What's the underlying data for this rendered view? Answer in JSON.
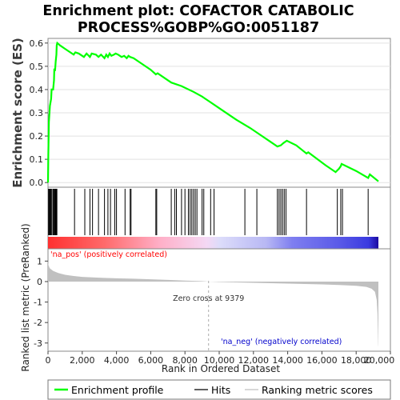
{
  "title_line1": "Enrichment plot: COFACTOR CATABOLIC",
  "title_line2": "PROCESS%GOBP%GO:0051187",
  "colors": {
    "es_line": "#00ff00",
    "hits": "#000000",
    "metric": "#c0c0c0",
    "pos_label": "#ff0000",
    "neg_label": "#0000cc",
    "zero_cross_line": "#aaaaaa"
  },
  "chart_data": [
    {
      "type": "line",
      "panel": "enrichment-profile",
      "ylabel": "Enrichment score (ES)",
      "xlim": [
        0,
        20000
      ],
      "ylim": [
        -0.02,
        0.62
      ],
      "yticks": [
        "0.0",
        "0.1",
        "0.2",
        "0.3",
        "0.4",
        "0.5",
        "0.6"
      ],
      "grid": true,
      "points": [
        [
          0,
          0.0
        ],
        [
          20,
          0.12
        ],
        [
          50,
          0.26
        ],
        [
          110,
          0.33
        ],
        [
          180,
          0.36
        ],
        [
          210,
          0.4
        ],
        [
          300,
          0.4
        ],
        [
          350,
          0.44
        ],
        [
          370,
          0.49
        ],
        [
          410,
          0.48
        ],
        [
          450,
          0.52
        ],
        [
          490,
          0.55
        ],
        [
          510,
          0.59
        ],
        [
          540,
          0.6
        ],
        [
          700,
          0.59
        ],
        [
          1000,
          0.575
        ],
        [
          1500,
          0.55
        ],
        [
          1600,
          0.56
        ],
        [
          1800,
          0.555
        ],
        [
          2100,
          0.54
        ],
        [
          2250,
          0.555
        ],
        [
          2450,
          0.54
        ],
        [
          2550,
          0.555
        ],
        [
          2800,
          0.55
        ],
        [
          2950,
          0.54
        ],
        [
          3100,
          0.55
        ],
        [
          3300,
          0.535
        ],
        [
          3400,
          0.55
        ],
        [
          3500,
          0.54
        ],
        [
          3600,
          0.555
        ],
        [
          3700,
          0.545
        ],
        [
          3850,
          0.55
        ],
        [
          3950,
          0.555
        ],
        [
          4100,
          0.55
        ],
        [
          4300,
          0.54
        ],
        [
          4450,
          0.545
        ],
        [
          4600,
          0.535
        ],
        [
          4700,
          0.545
        ],
        [
          4800,
          0.54
        ],
        [
          5000,
          0.535
        ],
        [
          5500,
          0.51
        ],
        [
          6000,
          0.485
        ],
        [
          6300,
          0.465
        ],
        [
          6400,
          0.47
        ],
        [
          7000,
          0.44
        ],
        [
          7200,
          0.43
        ],
        [
          7800,
          0.415
        ],
        [
          8500,
          0.39
        ],
        [
          9000,
          0.37
        ],
        [
          9400,
          0.35
        ],
        [
          10000,
          0.32
        ],
        [
          11000,
          0.27
        ],
        [
          11800,
          0.235
        ],
        [
          12400,
          0.205
        ],
        [
          13000,
          0.175
        ],
        [
          13400,
          0.155
        ],
        [
          13600,
          0.16
        ],
        [
          13750,
          0.17
        ],
        [
          13950,
          0.18
        ],
        [
          14500,
          0.16
        ],
        [
          15100,
          0.125
        ],
        [
          15200,
          0.13
        ],
        [
          16200,
          0.075
        ],
        [
          16800,
          0.045
        ],
        [
          17000,
          0.06
        ],
        [
          17100,
          0.07
        ],
        [
          17150,
          0.08
        ],
        [
          18000,
          0.05
        ],
        [
          18700,
          0.02
        ],
        [
          18800,
          0.035
        ],
        [
          19300,
          0.005
        ]
      ]
    },
    {
      "type": "hits",
      "panel": "hit-rug",
      "xlim": [
        0,
        20000
      ],
      "positions": [
        30,
        60,
        100,
        130,
        170,
        220,
        290,
        330,
        380,
        410,
        430,
        460,
        490,
        520,
        1550,
        2150,
        2450,
        2600,
        2950,
        3300,
        3500,
        3650,
        3900,
        4000,
        4500,
        4800,
        4850,
        6300,
        6350,
        7200,
        7400,
        7500,
        7800,
        8000,
        8200,
        8300,
        8400,
        8500,
        8600,
        8700,
        9000,
        9100,
        9500,
        9700,
        11500,
        12200,
        13400,
        13500,
        13600,
        13700,
        13800,
        13900,
        15100,
        16900,
        17100,
        17200,
        18700
      ]
    },
    {
      "type": "area",
      "panel": "ranked-list-metric",
      "ylabel": "Ranked list metric (PreRanked)",
      "xlabel": "Rank in Ordered Dataset",
      "xlim": [
        0,
        20000
      ],
      "ylim": [
        -3.4,
        1.6
      ],
      "xticks": [
        "0",
        "2,000",
        "4,000",
        "6,000",
        "8,000",
        "10,000",
        "12,000",
        "14,000",
        "16,000",
        "18,000",
        "20,000"
      ],
      "yticks": [
        "1",
        "0",
        "-1",
        "-2",
        "-3"
      ],
      "points": [
        [
          0,
          1.0
        ],
        [
          30,
          0.8
        ],
        [
          100,
          0.65
        ],
        [
          300,
          0.52
        ],
        [
          600,
          0.42
        ],
        [
          1000,
          0.33
        ],
        [
          1500,
          0.27
        ],
        [
          2000,
          0.23
        ],
        [
          3000,
          0.19
        ],
        [
          4000,
          0.16
        ],
        [
          5000,
          0.14
        ],
        [
          6000,
          0.11
        ],
        [
          7000,
          0.08
        ],
        [
          8000,
          0.05
        ],
        [
          9000,
          0.02
        ],
        [
          9379,
          0.0
        ],
        [
          10000,
          -0.02
        ],
        [
          11000,
          -0.04
        ],
        [
          12000,
          -0.06
        ],
        [
          13000,
          -0.08
        ],
        [
          14000,
          -0.1
        ],
        [
          15000,
          -0.12
        ],
        [
          16000,
          -0.14
        ],
        [
          17000,
          -0.17
        ],
        [
          18000,
          -0.21
        ],
        [
          18600,
          -0.26
        ],
        [
          18900,
          -0.35
        ],
        [
          19100,
          -0.5
        ],
        [
          19200,
          -0.9
        ],
        [
          19250,
          -1.6
        ],
        [
          19290,
          -3.1
        ],
        [
          19300,
          -3.2
        ]
      ],
      "zero_cross_rank": 9379,
      "zero_cross_label": "Zero cross at 9379",
      "pos_label": "'na_pos' (positively correlated)",
      "neg_label": "'na_neg' (negatively correlated)"
    }
  ],
  "legend": {
    "items": [
      "Enrichment profile",
      "Hits",
      "Ranking metric scores"
    ]
  }
}
